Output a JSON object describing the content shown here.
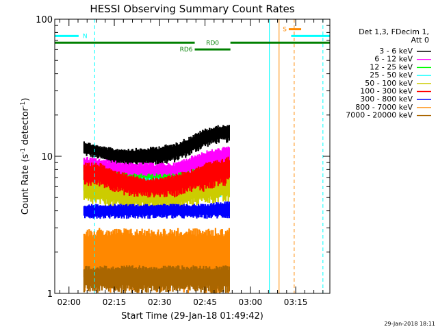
{
  "chart_data": {
    "type": "line",
    "title": "HESSI Observing Summary Count Rates",
    "xlabel": "Start Time (29-Jan-18 01:49:42)",
    "ylabel": "Count Rate (s⁻¹ detector⁻¹)",
    "yscale": "log",
    "ylim": [
      1,
      100
    ],
    "xlim_minutes": [
      -4.7,
      86.3
    ],
    "x_ticks": [
      {
        "minute": 0,
        "label": "02:00"
      },
      {
        "minute": 15,
        "label": "02:15"
      },
      {
        "minute": 30,
        "label": "02:30"
      },
      {
        "minute": 45,
        "label": "02:45"
      },
      {
        "minute": 60,
        "label": "03:00"
      },
      {
        "minute": 75,
        "label": "03:15"
      }
    ],
    "y_ticks": [
      {
        "value": 1,
        "label": "1"
      },
      {
        "value": 10,
        "label": "10"
      },
      {
        "value": 100,
        "label": "100"
      }
    ],
    "legend": {
      "placement": "top-right",
      "header": [
        "Det 1,3, FDecim 1,",
        "Att 0"
      ],
      "entries": [
        {
          "label": "3 - 6 keV",
          "color": "#000000"
        },
        {
          "label": "6 - 12 keV",
          "color": "#ff00ff"
        },
        {
          "label": "12 - 25 keV",
          "color": "#00ff00"
        },
        {
          "label": "25 - 50 keV",
          "color": "#00ffff"
        },
        {
          "label": "50 - 100 keV",
          "color": "#cccc00"
        },
        {
          "label": "100 - 300 keV",
          "color": "#ff0000"
        },
        {
          "label": "300 - 800 keV",
          "color": "#0000ff"
        },
        {
          "label": "800 - 7000 keV",
          "color": "#ff8800"
        },
        {
          "label": "7000 - 20000 keV",
          "color": "#aa6600"
        }
      ]
    },
    "data_span_minutes": [
      5,
      53
    ],
    "series": [
      {
        "band": "3 - 6 keV",
        "color": "#000000",
        "t": [
          5,
          10,
          15,
          20,
          25,
          30,
          35,
          40,
          45,
          50,
          53
        ],
        "low": [
          10,
          9.5,
          8.5,
          8.5,
          8.5,
          8.5,
          9,
          10,
          11.5,
          12.5,
          12.5
        ],
        "high": [
          13,
          12,
          11.5,
          11.5,
          11.5,
          12,
          12.5,
          14,
          16,
          17,
          17
        ]
      },
      {
        "band": "6 - 12 keV",
        "color": "#ff00ff",
        "t": [
          5,
          20,
          35,
          45,
          53
        ],
        "low": [
          7,
          6.5,
          6.5,
          7.5,
          8
        ],
        "high": [
          10,
          9,
          9,
          11,
          12
        ]
      },
      {
        "band": "12 - 25 keV",
        "color": "#00ff00",
        "t": [
          5,
          20,
          35,
          45,
          53
        ],
        "low": [
          5.5,
          5,
          5,
          5.5,
          5.5
        ],
        "high": [
          8.5,
          7.5,
          7.5,
          8.5,
          9
        ]
      },
      {
        "band": "25 - 50 keV",
        "color": "#00ffff",
        "t": [
          5,
          20,
          35,
          45,
          53
        ],
        "low": [
          5,
          4.5,
          4.5,
          5,
          5
        ],
        "high": [
          7.5,
          7,
          7,
          7.5,
          8
        ]
      },
      {
        "band": "50 - 100 keV",
        "color": "#cccc00",
        "t": [
          5,
          20,
          35,
          45,
          53
        ],
        "low": [
          4.5,
          4,
          4,
          4.5,
          4.5
        ],
        "high": [
          7,
          6.5,
          6.5,
          7,
          7.5
        ]
      },
      {
        "band": "100 - 300 keV",
        "color": "#ff0000",
        "t": [
          5,
          10,
          15,
          20,
          25,
          30,
          35,
          40,
          45,
          50,
          53
        ],
        "low": [
          6,
          6,
          5.5,
          5,
          5,
          5,
          5,
          5.5,
          5.5,
          6,
          6
        ],
        "high": [
          9,
          9,
          8,
          7.5,
          7,
          7,
          7.5,
          8,
          9,
          9.5,
          10
        ]
      },
      {
        "band": "300 - 800 keV",
        "color": "#0000ff",
        "t": [
          5,
          20,
          35,
          45,
          53
        ],
        "low": [
          3.5,
          3.5,
          3.5,
          3.5,
          3.5
        ],
        "high": [
          4.5,
          4.5,
          4.5,
          4.5,
          4.8
        ]
      },
      {
        "band": "800 - 7000 keV",
        "color": "#ff8800",
        "t": [
          5,
          20,
          35,
          45,
          53
        ],
        "low": [
          1,
          1,
          1,
          1,
          1
        ],
        "high": [
          3,
          3,
          3,
          3,
          3
        ]
      },
      {
        "band": "7000 - 20000 keV",
        "color": "#aa6600",
        "t": [
          5,
          53
        ],
        "low": [
          1,
          1
        ],
        "high": [
          1.6,
          1.6
        ]
      }
    ],
    "bars": [
      {
        "label": "N",
        "color": "#00ffff",
        "start": -4.7,
        "end": 3.2,
        "level": 75.5,
        "label_side": "right"
      },
      {
        "label": "S",
        "color": "#00ffff",
        "start": 73.5,
        "end": 86.3,
        "level": 75.5,
        "label_side": "none"
      },
      {
        "label": "RD0",
        "color": "#008000",
        "start": -4.7,
        "end": 86.3,
        "level": 67.4,
        "gap": [
          41.6,
          53.4
        ],
        "label_side": "middle"
      },
      {
        "label": "RD6",
        "color": "#008000",
        "start": 41.6,
        "end": 53.4,
        "level": 60.2,
        "label_side": "left"
      },
      {
        "label": "S",
        "color": "#ff8800",
        "start": 72.7,
        "end": 76.8,
        "level": 84.5,
        "label_side": "left"
      }
    ],
    "vlines": [
      {
        "minute": -4.7,
        "color": "#00ffff",
        "style": "solid"
      },
      {
        "minute": 8.5,
        "color": "#00ffff",
        "style": "dashed"
      },
      {
        "minute": 66.3,
        "color": "#00ffff",
        "style": "solid"
      },
      {
        "minute": 69.5,
        "color": "#ff8800",
        "style": "solid"
      },
      {
        "minute": 74.5,
        "color": "#ff8800",
        "style": "dashed"
      },
      {
        "minute": 84.0,
        "color": "#00ffff",
        "style": "dashed"
      }
    ]
  },
  "footer": {
    "timestamp": "29-Jan-2018 18:11"
  }
}
